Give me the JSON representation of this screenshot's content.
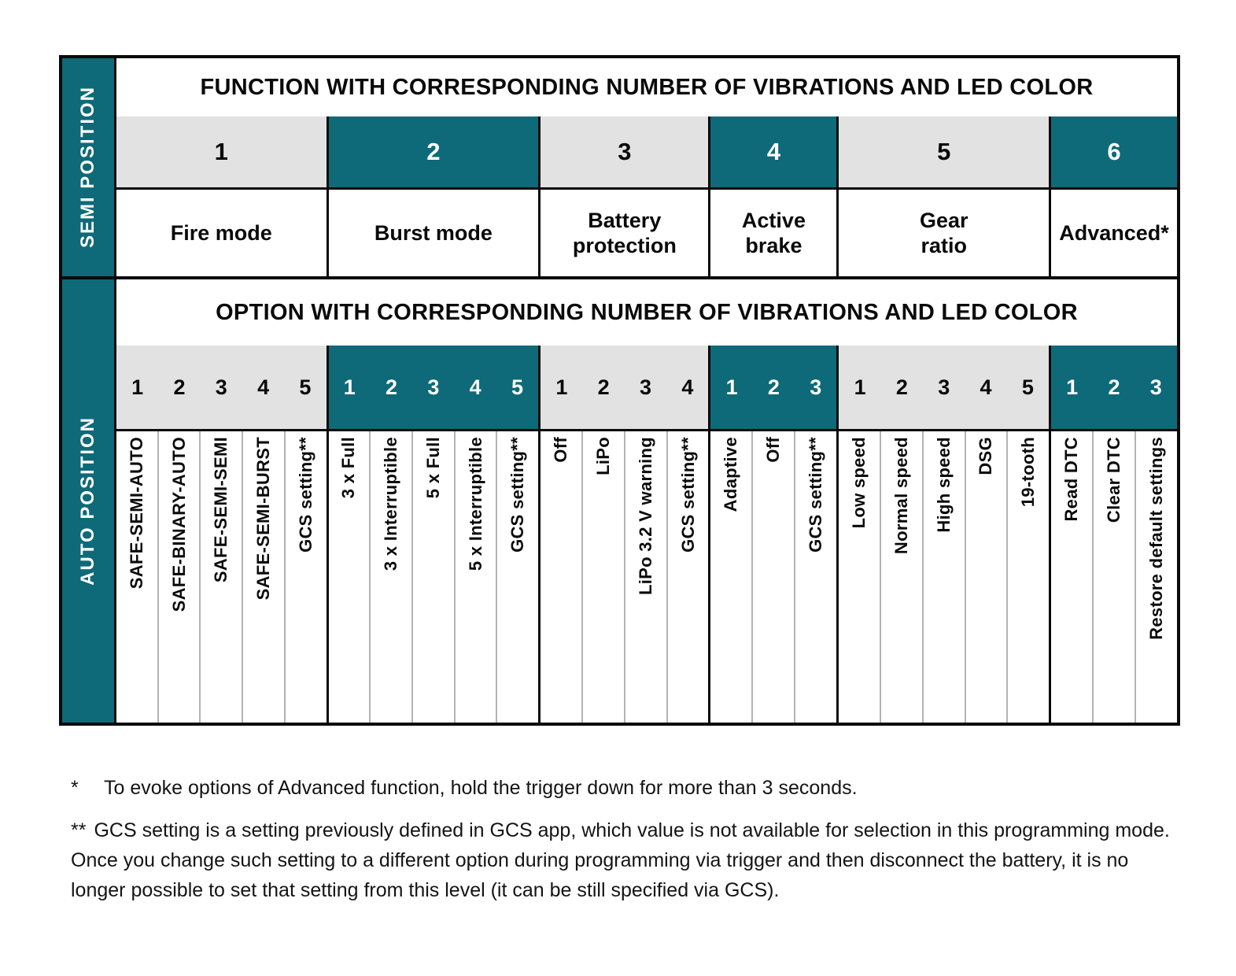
{
  "colors": {
    "teal": "#0E6A78",
    "gray": "#E2E2E2",
    "border": "#0a0a0a",
    "separator": "#b3b3b3"
  },
  "table": {
    "semi": {
      "sidebar_label": "SEMI POSITION",
      "header": "FUNCTION WITH CORRESPONDING NUMBER OF VIBRATIONS AND LED COLOR",
      "functions": [
        {
          "number": "1",
          "label": "Fire mode",
          "teal": false,
          "span": 5
        },
        {
          "number": "2",
          "label": "Burst mode",
          "teal": true,
          "span": 5
        },
        {
          "number": "3",
          "label": "Battery\nprotection",
          "teal": false,
          "span": 4
        },
        {
          "number": "4",
          "label": "Active\nbrake",
          "teal": true,
          "span": 3
        },
        {
          "number": "5",
          "label": "Gear\nratio",
          "teal": false,
          "span": 5
        },
        {
          "number": "6",
          "label": "Advanced*",
          "teal": true,
          "span": 3
        }
      ]
    },
    "auto": {
      "sidebar_label": "AUTO POSITION",
      "header": "OPTION WITH CORRESPONDING NUMBER OF VIBRATIONS AND LED COLOR",
      "option_groups": [
        {
          "function": "Fire mode",
          "teal": false,
          "options": [
            "SAFE-SEMI-AUTO",
            "SAFE-BINARY-AUTO",
            "SAFE-SEMI-SEMI",
            "SAFE-SEMI-BURST",
            "GCS setting**"
          ]
        },
        {
          "function": "Burst mode",
          "teal": true,
          "options": [
            "3 x Full",
            "3 x Interruptible",
            "5 x Full",
            "5 x Interruptible",
            "GCS setting**"
          ]
        },
        {
          "function": "Battery protection",
          "teal": false,
          "options": [
            "Off",
            "LiPo",
            "LiPo 3.2 V warning",
            "GCS setting**"
          ]
        },
        {
          "function": "Active brake",
          "teal": true,
          "options": [
            "Adaptive",
            "Off",
            "GCS setting**"
          ]
        },
        {
          "function": "Gear ratio",
          "teal": false,
          "options": [
            "Low speed",
            "Normal speed",
            "High speed",
            "DSG",
            "19-tooth"
          ]
        },
        {
          "function": "Advanced",
          "teal": true,
          "options": [
            "Read DTC",
            "Clear DTC",
            "Restore default settings"
          ]
        }
      ]
    }
  },
  "footnotes": [
    {
      "marker": "*",
      "text": "To evoke options of Advanced function, hold the trigger down for more than 3 seconds."
    },
    {
      "marker": "**",
      "text": "GCS setting is a setting previously defined in GCS app, which value is not available for selection in this programming mode. Once you change such setting to a different option during programming via trigger and then disconnect the battery, it is no longer possible to set that setting from this level (it can be still specified via GCS)."
    }
  ]
}
